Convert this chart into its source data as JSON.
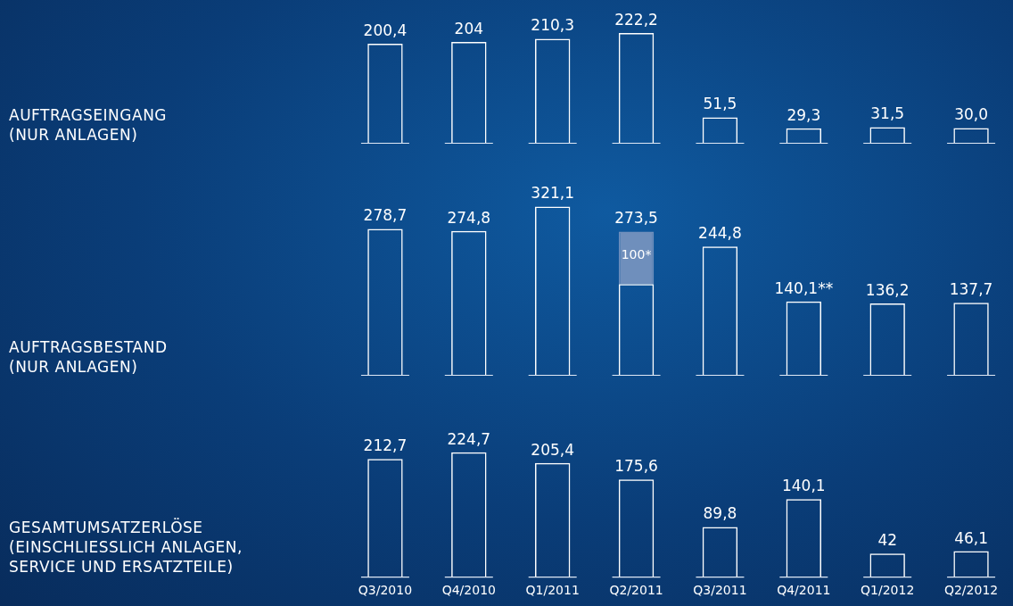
{
  "chart_data": [
    {
      "type": "bar",
      "ylabel": "AUFTRAGSEINGANG\n(NUR ANLAGEN)",
      "categories": [
        null,
        null,
        null,
        null,
        null,
        null,
        null,
        null
      ],
      "tick_labels": false,
      "grid": false,
      "legend": false,
      "series": [
        {
          "color": "#ffffff",
          "values": [
            200.4,
            204,
            210.3,
            222.2,
            51.5,
            29.3,
            31.5,
            30.0
          ],
          "value_labels": [
            "200,4",
            "204",
            "210,3",
            "222,2",
            "51,5",
            "29,3",
            "31,5",
            "30,0"
          ]
        }
      ]
    },
    {
      "type": "bar",
      "ylabel": "AUFTRAGSBESTAND\n(NUR ANLAGEN)",
      "categories": [
        null,
        null,
        null,
        null,
        null,
        null,
        null,
        null
      ],
      "tick_labels": false,
      "grid": false,
      "legend": false,
      "stacked": true,
      "series": [
        {
          "color": "#ffffff",
          "values": [
            278.7,
            274.8,
            321.1,
            173.5,
            244.8,
            140.1,
            136.2,
            137.7
          ],
          "value_labels": [
            "278,7",
            "274,8",
            "321,1",
            null,
            "244,8",
            "140,1**",
            "136,2",
            "137,7"
          ]
        },
        {
          "color": "#6f8fbc",
          "values": [
            null,
            null,
            null,
            100,
            null,
            null,
            null,
            null
          ],
          "value_labels": [
            null,
            null,
            null,
            "100*",
            null,
            null,
            null,
            null
          ]
        }
      ],
      "totals": [
        null,
        null,
        null,
        "273,5",
        null,
        null,
        null,
        null
      ]
    },
    {
      "type": "bar",
      "ylabel": "GESAMTUMSATZERLÖSE\n(EINSCHLIESSLICH ANLAGEN,\nSERVICE UND ERSATZTEILE)",
      "categories": [
        "Q3/2010",
        "Q4/2010",
        "Q1/2011",
        "Q2/2011",
        "Q3/2011",
        "Q4/2011",
        "Q1/2012",
        "Q2/2012"
      ],
      "tick_labels": "x",
      "grid": false,
      "legend": false,
      "series": [
        {
          "color": "#ffffff",
          "values": [
            212.7,
            224.7,
            205.4,
            175.6,
            89.8,
            140.1,
            42,
            46.1
          ],
          "value_labels": [
            "212,7",
            "224,7",
            "205,4",
            "175,6",
            "89,8",
            "140,1",
            "42",
            "46,1"
          ]
        }
      ]
    }
  ]
}
